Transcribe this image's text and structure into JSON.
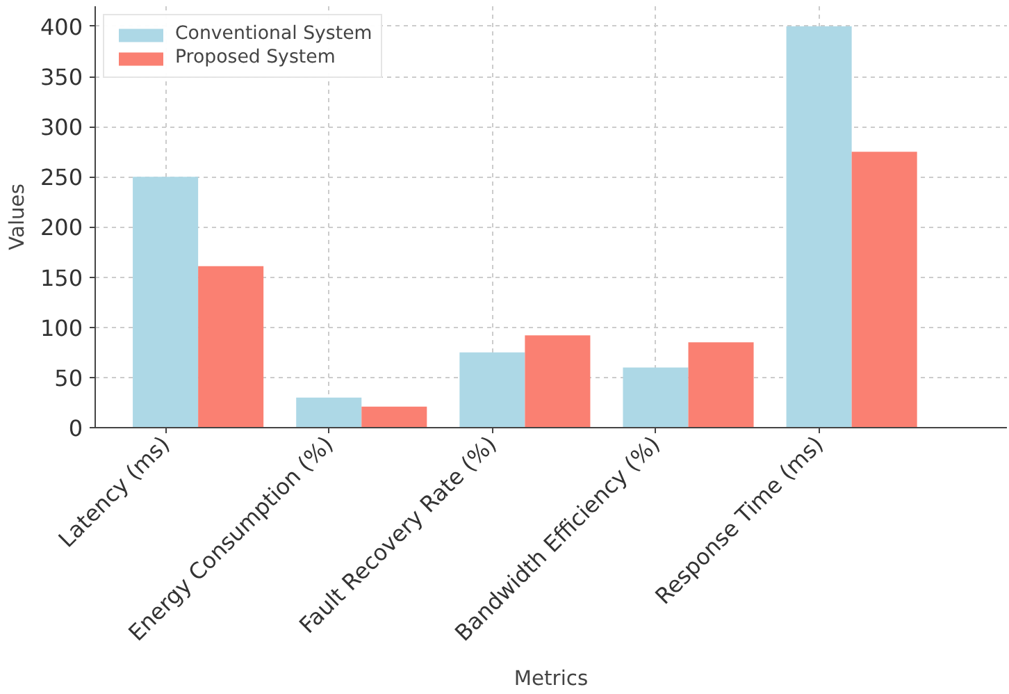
{
  "chart_data": {
    "type": "bar",
    "xlabel": "Metrics",
    "ylabel": "Values",
    "categories": [
      "Latency (ms)",
      "Energy Consumption (%)",
      "Fault Recovery Rate (%)",
      "Bandwidth Efficiency (%)",
      "Response Time (ms)"
    ],
    "series": [
      {
        "name": "Conventional System",
        "color": "#add8e6",
        "values": [
          250,
          30,
          75,
          60,
          400
        ]
      },
      {
        "name": "Proposed System",
        "color": "#fa8072",
        "values": [
          161,
          21,
          92,
          85,
          275
        ]
      }
    ],
    "ylim": [
      0,
      420
    ],
    "yticks": [
      0,
      50,
      100,
      150,
      200,
      250,
      300,
      350,
      400
    ],
    "grid": true,
    "legend": "top left"
  }
}
